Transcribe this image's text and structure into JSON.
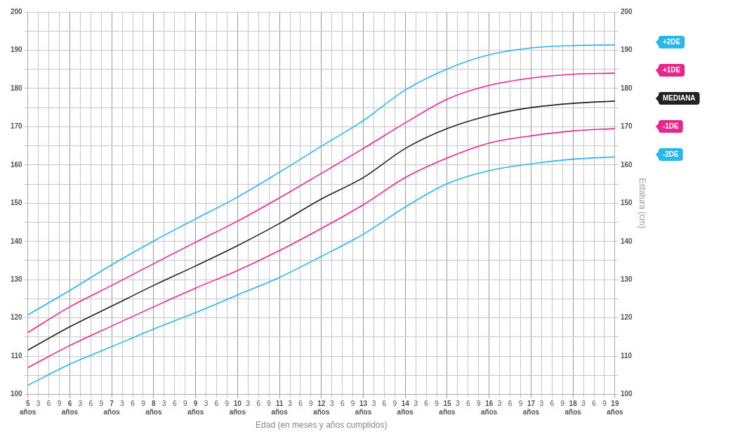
{
  "chart_data": {
    "type": "line",
    "xlabel": "Edad (en meses y años cumplidos)",
    "y2label": "Estatura (cm)",
    "categories": [
      "5 años",
      "3",
      "6",
      "9",
      "6 años",
      "3",
      "6",
      "9",
      "7 años",
      "3",
      "6",
      "9",
      "8 años",
      "3",
      "6",
      "9",
      "9 años",
      "3",
      "6",
      "9",
      "10 años",
      "3",
      "6",
      "9",
      "11 años",
      "3",
      "6",
      "9",
      "12 años",
      "3",
      "6",
      "9",
      "13 años",
      "3",
      "6",
      "9",
      "14 años",
      "3",
      "6",
      "9",
      "15 años",
      "3",
      "6",
      "9",
      "16 años",
      "3",
      "6",
      "9",
      "17 años",
      "3",
      "6",
      "9",
      "18 años",
      "3",
      "6",
      "9",
      "19 años"
    ],
    "series": [
      {
        "name": "+2DE",
        "color": "#29b6e8",
        "x": [
          "5 años",
          "6 años",
          "7 años",
          "8 años",
          "9 años",
          "10 años",
          "11 años",
          "12 años",
          "13 años",
          "14 años",
          "15 años",
          "16 años",
          "17 años",
          "18 años",
          "19 años"
        ],
        "values": [
          120.8,
          127.2,
          133.9,
          140.1,
          145.9,
          151.6,
          158.1,
          164.9,
          171.6,
          179.6,
          185.1,
          188.8,
          190.6,
          191.2,
          191.4
        ]
      },
      {
        "name": "+1DE",
        "color": "#e6268c",
        "x": [
          "5 años",
          "6 años",
          "7 años",
          "8 años",
          "9 años",
          "10 años",
          "11 años",
          "12 años",
          "13 años",
          "14 años",
          "15 años",
          "16 años",
          "17 años",
          "18 años",
          "19 años"
        ],
        "values": [
          116.2,
          122.9,
          128.5,
          134.2,
          139.8,
          145.3,
          151.4,
          157.8,
          164.3,
          171.0,
          177.2,
          180.8,
          182.7,
          183.7,
          184.0
        ]
      },
      {
        "name": "MEDIANA",
        "color": "#222222",
        "x": [
          "5 años",
          "6 años",
          "7 años",
          "8 años",
          "9 años",
          "10 años",
          "11 años",
          "12 años",
          "13 años",
          "14 años",
          "15 años",
          "16 años",
          "17 años",
          "18 años",
          "19 años"
        ],
        "values": [
          111.6,
          117.7,
          123.1,
          128.5,
          133.6,
          138.9,
          144.7,
          151.1,
          156.7,
          164.3,
          169.5,
          172.9,
          175.0,
          176.1,
          176.7
        ]
      },
      {
        "name": "-1DE",
        "color": "#e6268c",
        "x": [
          "5 años",
          "6 años",
          "7 años",
          "8 años",
          "9 años",
          "10 años",
          "11 años",
          "12 años",
          "13 años",
          "14 años",
          "15 años",
          "16 años",
          "17 años",
          "18 años",
          "19 años"
        ],
        "values": [
          107.0,
          112.8,
          117.9,
          122.9,
          127.8,
          132.4,
          137.6,
          143.4,
          149.6,
          156.7,
          161.8,
          165.7,
          167.6,
          168.9,
          169.5
        ]
      },
      {
        "name": "-2DE",
        "color": "#29b6e8",
        "x": [
          "5 años",
          "6 años",
          "7 años",
          "8 años",
          "9 años",
          "10 años",
          "11 años",
          "12 años",
          "13 años",
          "14 años",
          "15 años",
          "16 años",
          "17 años",
          "18 años",
          "19 años"
        ],
        "values": [
          102.4,
          107.9,
          112.5,
          117.1,
          121.4,
          126.0,
          130.6,
          136.1,
          141.9,
          149.0,
          155.1,
          158.5,
          160.3,
          161.5,
          162.1
        ]
      }
    ],
    "ylim": [
      100,
      200
    ],
    "yticks": [
      100,
      {
        "value": 105,
        "label": null
      },
      110,
      {
        "value": 115,
        "label": null
      },
      120,
      {
        "value": 125,
        "label": null
      },
      130,
      {
        "value": 135,
        "label": null
      },
      140,
      {
        "value": 145,
        "label": null
      },
      150,
      {
        "value": 155,
        "label": null
      },
      160,
      {
        "value": 165,
        "label": null
      },
      170,
      {
        "value": 175,
        "label": null
      },
      180,
      {
        "value": 185,
        "label": null
      },
      190,
      {
        "value": 195,
        "label": null
      },
      200
    ],
    "y2lim": [
      100,
      200
    ],
    "y2ticks": [
      100,
      {
        "value": 105,
        "label": null
      },
      110,
      {
        "value": 115,
        "label": null
      },
      120,
      {
        "value": 125,
        "label": null
      },
      130,
      {
        "value": 135,
        "label": null
      },
      140,
      {
        "value": 145,
        "label": null
      },
      150,
      {
        "value": 155,
        "label": null
      },
      160,
      {
        "value": 165,
        "label": null
      },
      170,
      {
        "value": 175,
        "label": null
      },
      180,
      {
        "value": 185,
        "label": null
      },
      190,
      {
        "value": 195,
        "label": null
      },
      200
    ],
    "grid": true,
    "legend": "right",
    "marker": "none",
    "line_style": "solid"
  }
}
